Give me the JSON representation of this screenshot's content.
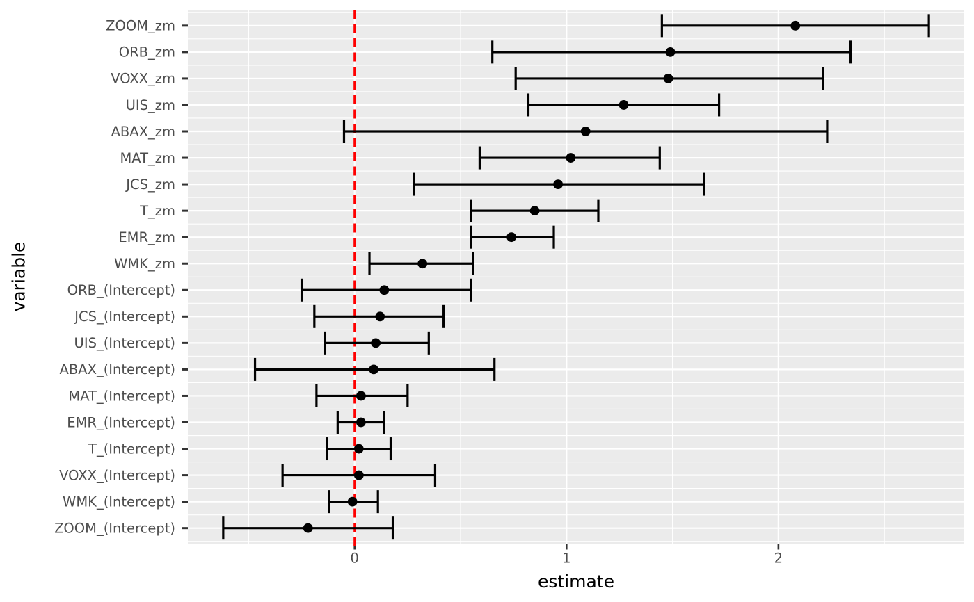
{
  "colors": {
    "background": "#FFFFFF",
    "panel": "#EBEBEB",
    "grid": "#FFFFFF",
    "point": "#000000",
    "errorbar": "#000000",
    "reference_line": "#FF0000",
    "axis_text": "#4D4D4D",
    "axis_title": "#000000",
    "tick_mark": "#333333"
  },
  "chart_data": {
    "type": "scatter",
    "variant": "forest_plot_pointrange",
    "title": "",
    "xlabel": "estimate",
    "ylabel": "variable",
    "xlim": [
      -0.787,
      2.877
    ],
    "x_ticks": [
      "0",
      "1",
      "2"
    ],
    "x_tick_values": [
      0,
      1,
      2
    ],
    "x_minor_gridlines": [
      -0.5,
      0.5,
      1.5,
      2.5
    ],
    "grid": "on",
    "legend": "none",
    "reference_line": {
      "x": 0,
      "style": "dashed"
    },
    "categories": [
      "ZOOM_zm",
      "ORB_zm",
      "VOXX_zm",
      "UIS_zm",
      "ABAX_zm",
      "MAT_zm",
      "JCS_zm",
      "T_zm",
      "EMR_zm",
      "WMK_zm",
      "ORB_(Intercept)",
      "JCS_(Intercept)",
      "UIS_(Intercept)",
      "ABAX_(Intercept)",
      "MAT_(Intercept)",
      "EMR_(Intercept)",
      "T_(Intercept)",
      "VOXX_(Intercept)",
      "WMK_(Intercept)",
      "ZOOM_(Intercept)"
    ],
    "series": [
      {
        "name": "estimate",
        "values": [
          2.08,
          1.49,
          1.48,
          1.27,
          1.09,
          1.02,
          0.96,
          0.85,
          0.74,
          0.32,
          0.14,
          0.12,
          0.1,
          0.09,
          0.03,
          0.03,
          0.02,
          0.02,
          -0.01,
          -0.22
        ]
      },
      {
        "name": "conf_low",
        "values": [
          1.45,
          0.65,
          0.76,
          0.82,
          -0.05,
          0.59,
          0.28,
          0.55,
          0.55,
          0.07,
          -0.25,
          -0.19,
          -0.14,
          -0.47,
          -0.18,
          -0.08,
          -0.13,
          -0.34,
          -0.12,
          -0.62
        ]
      },
      {
        "name": "conf_high",
        "values": [
          2.71,
          2.34,
          2.21,
          1.72,
          2.23,
          1.44,
          1.65,
          1.15,
          0.94,
          0.56,
          0.55,
          0.42,
          0.35,
          0.66,
          0.25,
          0.14,
          0.17,
          0.38,
          0.11,
          0.18
        ]
      }
    ]
  }
}
